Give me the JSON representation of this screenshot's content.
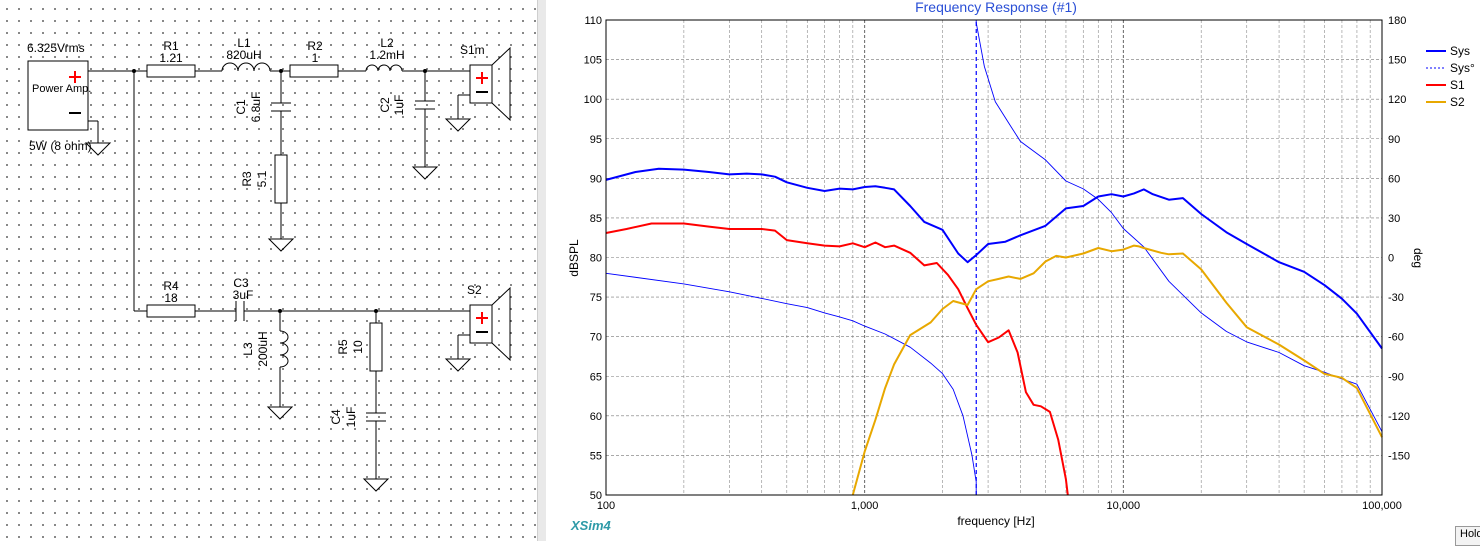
{
  "schematic": {
    "source": {
      "voltage": "6.325Vrms",
      "label": "Power Amp.",
      "rating": "5W (8 ohm)"
    },
    "components": {
      "R1": {
        "name": "R1",
        "value": "1.21"
      },
      "L1": {
        "name": "L1",
        "value": "820uH"
      },
      "R2": {
        "name": "R2",
        "value": "1"
      },
      "L2": {
        "name": "L2",
        "value": "1.2mH"
      },
      "C1": {
        "name": "C1",
        "value": "6.8uF"
      },
      "C2": {
        "name": "C2",
        "value": "1uF"
      },
      "R3": {
        "name": "R3",
        "value": "5.1"
      },
      "R4": {
        "name": "R4",
        "value": "18"
      },
      "C3": {
        "name": "C3",
        "value": "3uF"
      },
      "L3": {
        "name": "L3",
        "value": "200uH"
      },
      "R5": {
        "name": "R5",
        "value": "10"
      },
      "C4": {
        "name": "C4",
        "value": "1uF"
      }
    },
    "speakers": {
      "S1": "S1m",
      "S2": "S2"
    }
  },
  "app_name": "XSim4",
  "hold_button": "Hold",
  "chart_data": {
    "type": "line",
    "title": "Frequency Response (#1)",
    "xlabel": "frequency [Hz]",
    "ylabel": "dBSPL",
    "y2label": "deg",
    "x_scale": "log",
    "xlim": [
      100,
      100000
    ],
    "ylim": [
      50,
      110
    ],
    "y2lim": [
      -180,
      180
    ],
    "x_ticks": [
      {
        "v": 100,
        "label": "100"
      },
      {
        "v": 1000,
        "label": "1,000"
      },
      {
        "v": 10000,
        "label": "10,000"
      },
      {
        "v": 100000,
        "label": "100,000"
      }
    ],
    "y_ticks": [
      50,
      55,
      60,
      65,
      70,
      75,
      80,
      85,
      90,
      95,
      100,
      105,
      110
    ],
    "y2_ticks": [
      -150,
      -120,
      -90,
      -60,
      -30,
      0,
      30,
      60,
      90,
      120,
      150,
      180
    ],
    "grid": true,
    "legend_position": "right",
    "series": [
      {
        "name": "Sys",
        "color": "#0000ff",
        "axis": "left",
        "style": "solid-thick",
        "x": [
          100,
          130,
          160,
          200,
          250,
          300,
          350,
          400,
          450,
          500,
          600,
          700,
          800,
          900,
          1000,
          1100,
          1200,
          1300,
          1500,
          1700,
          2000,
          2300,
          2500,
          2700,
          3000,
          3500,
          4000,
          5000,
          6000,
          7000,
          8000,
          9000,
          10000,
          11000,
          12000,
          13000,
          15000,
          17000,
          20000,
          25000,
          30000,
          40000,
          50000,
          60000,
          70000,
          80000,
          100000
        ],
        "y": [
          89.8,
          90.8,
          91.2,
          91.1,
          90.8,
          90.5,
          90.6,
          90.5,
          90.2,
          89.5,
          88.8,
          88.4,
          88.7,
          88.6,
          88.9,
          89.0,
          88.8,
          88.6,
          86.5,
          84.5,
          83.5,
          80.5,
          79.4,
          80.3,
          81.7,
          82.0,
          82.8,
          84.0,
          86.2,
          86.5,
          87.7,
          88.0,
          87.7,
          88.1,
          88.6,
          88.0,
          87.3,
          87.5,
          85.5,
          83.2,
          81.7,
          79.4,
          78.2,
          76.5,
          74.8,
          72.9,
          68.5
        ]
      },
      {
        "name": "Sys°",
        "color": "#0000ff",
        "axis": "right",
        "style": "dashed-thin",
        "phase_wraps_at": 2700,
        "x": [
          100,
          200,
          300,
          400,
          500,
          600,
          700,
          800,
          900,
          1000,
          1200,
          1500,
          1800,
          2000,
          2200,
          2400,
          2600,
          2700,
          2700,
          2900,
          3200,
          3600,
          4000,
          5000,
          6000,
          7000,
          8000,
          9000,
          10000,
          12000,
          15000,
          20000,
          25000,
          30000,
          40000,
          50000,
          60000,
          70000,
          80000,
          100000
        ],
        "y": [
          -12,
          -20,
          -26,
          -31,
          -35,
          -38,
          -42,
          -45,
          -48,
          -52,
          -58,
          -68,
          -80,
          -88,
          -100,
          -120,
          -150,
          -170,
          178,
          145,
          118,
          102,
          88,
          74,
          58,
          52,
          44,
          34,
          22,
          8,
          -18,
          -42,
          -56,
          -64,
          -72,
          -82,
          -87,
          -92,
          -96,
          -132
        ]
      },
      {
        "name": "S1",
        "color": "#ff0000",
        "axis": "left",
        "style": "solid-thick",
        "x": [
          100,
          120,
          150,
          200,
          250,
          300,
          400,
          450,
          500,
          600,
          700,
          800,
          900,
          1000,
          1100,
          1200,
          1300,
          1500,
          1700,
          1900,
          2100,
          2300,
          2500,
          2700,
          3000,
          3300,
          3600,
          3900,
          4200,
          4500,
          4800,
          5200,
          5600,
          6000,
          6100
        ],
        "y": [
          83.1,
          83.6,
          84.3,
          84.3,
          83.9,
          83.6,
          83.6,
          83.4,
          82.2,
          81.8,
          81.5,
          81.4,
          81.8,
          81.3,
          81.9,
          81.3,
          81.5,
          80.6,
          79.0,
          79.3,
          77.8,
          76.0,
          73.6,
          71.5,
          69.3,
          69.9,
          70.8,
          68.0,
          63.0,
          61.4,
          61.2,
          60.5,
          57.0,
          52.0,
          50.0
        ]
      },
      {
        "name": "S2",
        "color": "#e8a800",
        "axis": "left",
        "style": "solid-thick",
        "x": [
          900,
          1000,
          1100,
          1200,
          1300,
          1500,
          1800,
          2000,
          2200,
          2500,
          2700,
          3000,
          3300,
          3600,
          4000,
          4500,
          5000,
          5500,
          6000,
          7000,
          8000,
          9000,
          10000,
          11000,
          11500,
          12000,
          14000,
          15000,
          17000,
          20000,
          25000,
          30000,
          40000,
          50000,
          60000,
          70000,
          80000,
          100000
        ],
        "y": [
          50.0,
          55.5,
          59.5,
          63.5,
          66.5,
          70.2,
          71.8,
          73.5,
          74.5,
          74.0,
          76.0,
          77.0,
          77.3,
          77.6,
          77.3,
          78.0,
          79.5,
          80.2,
          80.0,
          80.5,
          81.2,
          80.8,
          81.0,
          81.5,
          81.4,
          81.2,
          80.6,
          80.4,
          80.5,
          78.5,
          74.3,
          71.2,
          69.0,
          67.0,
          65.3,
          64.8,
          63.5,
          57.3
        ]
      }
    ]
  }
}
